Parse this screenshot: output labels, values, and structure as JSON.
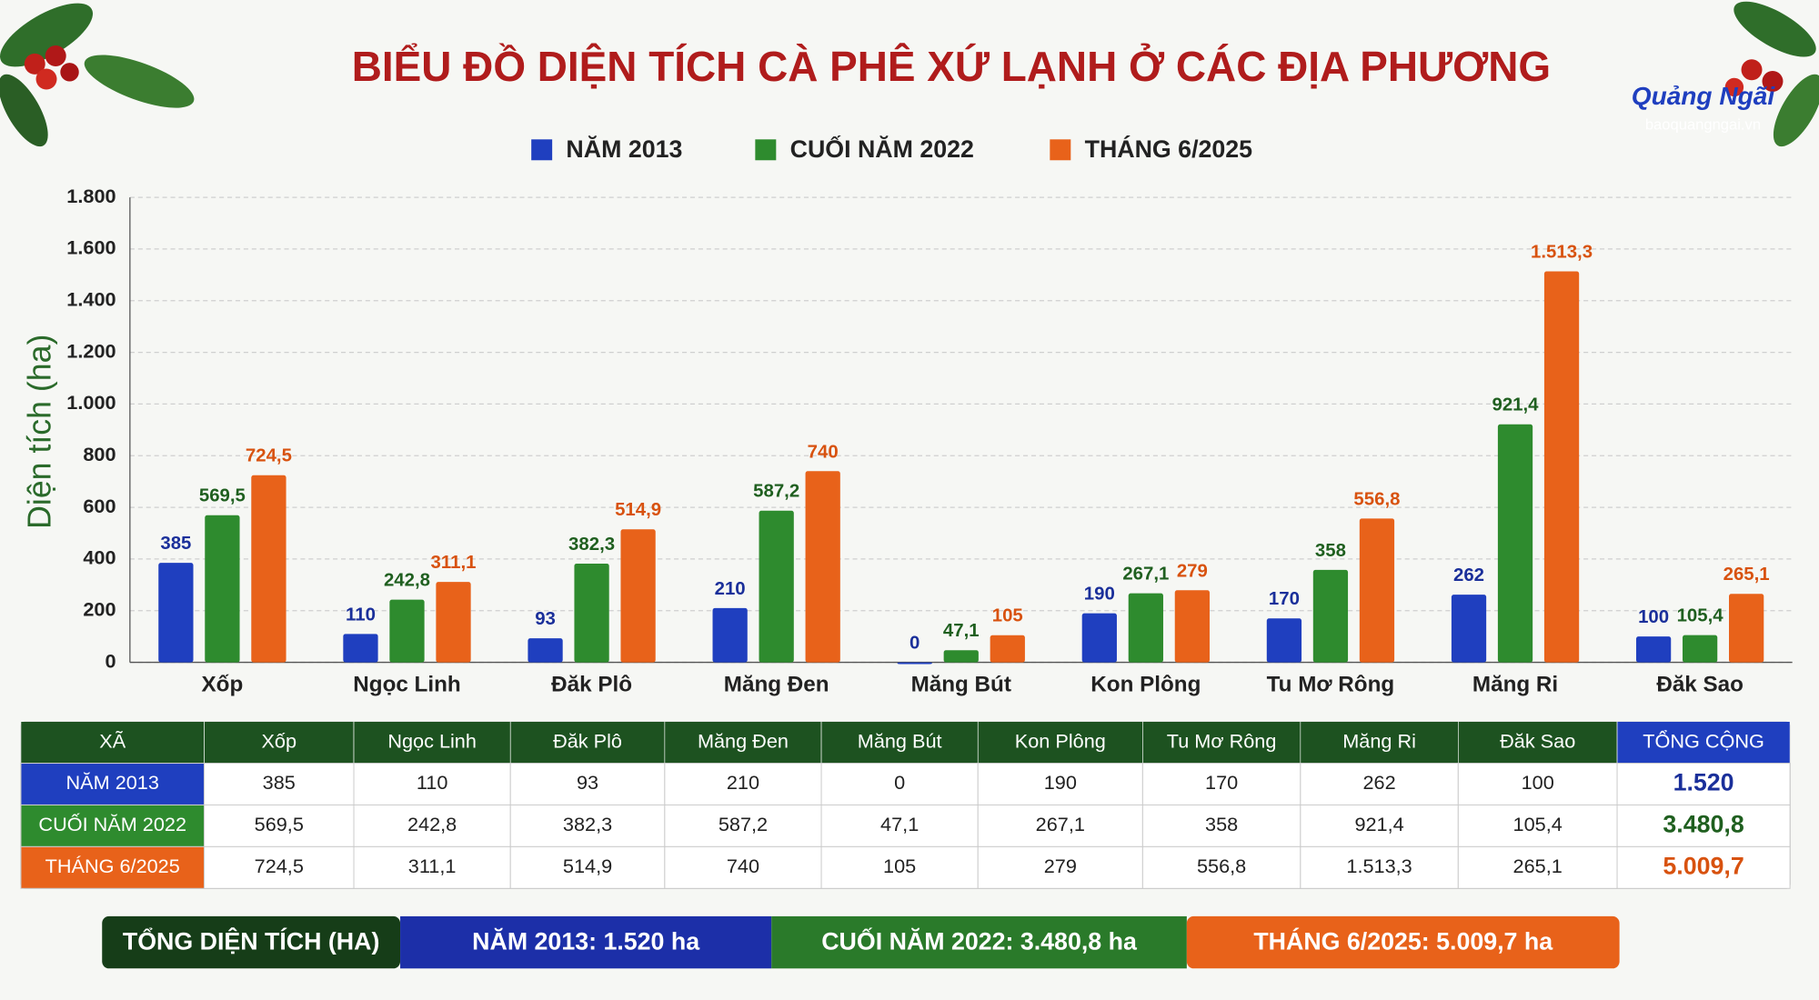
{
  "chart_data": {
    "type": "bar",
    "title": "BIỂU ĐỒ DIỆN TÍCH CÀ PHÊ XỨ LẠNH Ở CÁC ĐỊA PHƯƠNG",
    "y_label": "Diện tích (ha)",
    "categories": [
      "Xốp",
      "Ngọc Linh",
      "Đăk Plô",
      "Măng Đen",
      "Măng Bút",
      "Kon Plông",
      "Tu Mơ Rông",
      "Măng Ri",
      "Đăk Sao"
    ],
    "series": [
      {
        "name": "NĂM 2013",
        "color": "#1f3fbf",
        "values": [
          385,
          110,
          93,
          210,
          0,
          190,
          170,
          262,
          100
        ],
        "value_labels": [
          "385",
          "110",
          "93",
          "210",
          "0",
          "190",
          "170",
          "262",
          "100"
        ],
        "label_color": "#1a2f9a"
      },
      {
        "name": "CUỐI NĂM 2022",
        "color": "#2e8b2e",
        "values": [
          569.5,
          242.8,
          382.3,
          587.2,
          47.1,
          267.1,
          358,
          921.4,
          105.4
        ],
        "value_labels": [
          "569,5",
          "242,8",
          "382,3",
          "587,2",
          "47,1",
          "267,1",
          "358",
          "921,4",
          "105,4"
        ],
        "label_color": "#1f5f1f"
      },
      {
        "name": "THÁNG 6/2025",
        "color": "#e8621a",
        "values": [
          724.5,
          311.1,
          514.9,
          740,
          105,
          279,
          556.8,
          1513.3,
          265.1
        ],
        "value_labels": [
          "724,5",
          "311,1",
          "514,9",
          "740",
          "105",
          "279",
          "556,8",
          "1.513,3",
          "265,1"
        ],
        "label_color": "#d8520f"
      }
    ],
    "ylim": [
      0,
      1800
    ],
    "yticks": [
      0,
      200,
      400,
      600,
      800,
      {
        "value": 1000,
        "label": "1.000"
      },
      {
        "value": 1200,
        "label": "1.200"
      },
      {
        "value": 1400,
        "label": "1.400"
      },
      {
        "value": 1600,
        "label": "1.600"
      },
      {
        "value": 1800,
        "label": "1.800"
      }
    ],
    "grid": true
  },
  "table": {
    "header": [
      "XÃ",
      "Xốp",
      "Ngọc Linh",
      "Đăk Plô",
      "Măng Đen",
      "Măng Bút",
      "Kon Plông",
      "Tu Mơ Rông",
      "Măng Ri",
      "Đăk Sao",
      "TỔNG CỘNG"
    ],
    "rows": [
      [
        "NĂM 2013",
        "385",
        "110",
        "93",
        "210",
        "0",
        "190",
        "170",
        "262",
        "100",
        "1.520"
      ],
      [
        "CUỐI NĂM 2022",
        "569,5",
        "242,8",
        "382,3",
        "587,2",
        "47,1",
        "267,1",
        "358",
        "921,4",
        "105,4",
        "3.480,8"
      ],
      [
        "THÁNG 6/2025",
        "724,5",
        "311,1",
        "514,9",
        "740",
        "105",
        "279",
        "556,8",
        "1.513,3",
        "265,1",
        "5.009,7"
      ]
    ]
  },
  "summary": {
    "label": "TỔNG DIỆN TÍCH (HA)",
    "items": [
      "NĂM 2013: 1.520 ha",
      "CUỐI NĂM 2022: 3.480,8 ha",
      "THÁNG 6/2025: 5.009,7 ha"
    ]
  },
  "logo": {
    "name": "Quảng Ngãi",
    "site": "baoquangngai.vn"
  }
}
